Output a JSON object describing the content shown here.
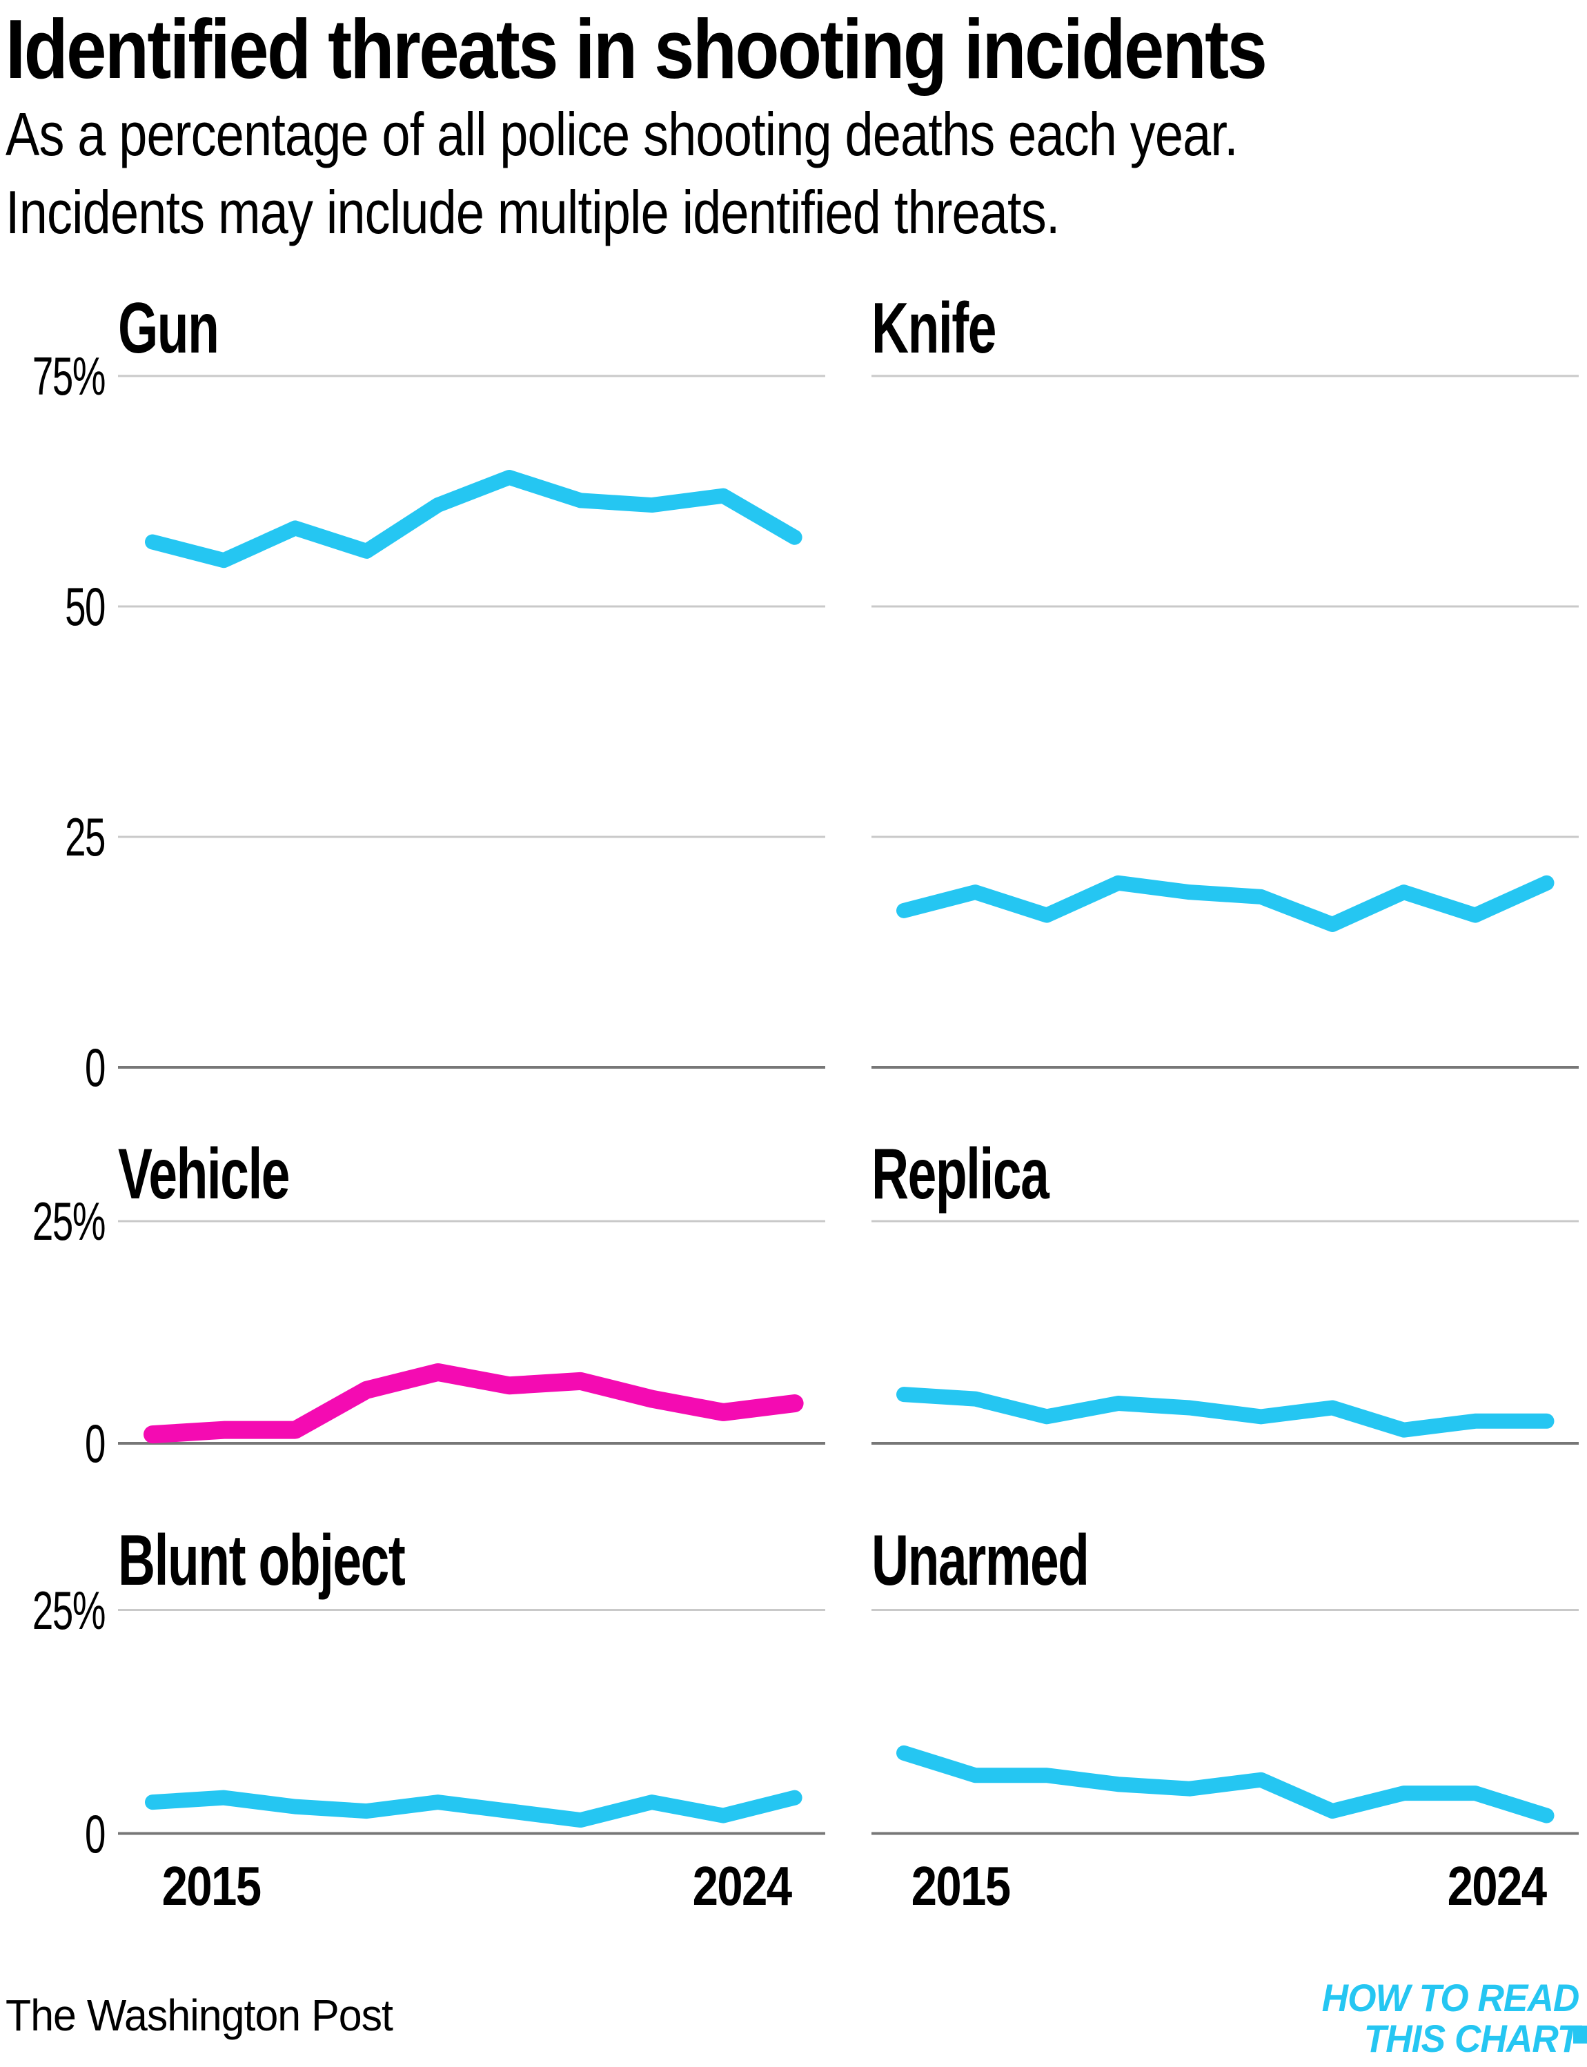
{
  "header": {
    "title": "Identified threats in shooting incidents",
    "subtitle_line1": "As a percentage of all police shooting deaths each year.",
    "subtitle_line2": "Incidents may include multiple identified threats."
  },
  "colors": {
    "cyan": "#25C6F2",
    "magenta": "#F40BB2",
    "grid": "#C9C9C9",
    "axis": "#777777",
    "text": "#000000"
  },
  "chart_data": {
    "type": "line",
    "title": "Identified threats in shooting incidents",
    "xlabel": "",
    "ylabel": "Percentage of all police shooting deaths",
    "x": [
      2015,
      2016,
      2017,
      2018,
      2019,
      2020,
      2021,
      2022,
      2023,
      2024
    ],
    "x_tick_labels": [
      "2015",
      "2024"
    ],
    "grid": true,
    "legend_position": "none",
    "rows": [
      {
        "ylim": [
          0,
          82
        ],
        "yticks": [
          {
            "label": "75%",
            "value": 75
          },
          {
            "label": "50",
            "value": 50
          },
          {
            "label": "25",
            "value": 25
          },
          {
            "label": "0",
            "value": 0
          }
        ]
      },
      {
        "ylim": [
          0,
          28
        ],
        "yticks": [
          {
            "label": "25%",
            "value": 25
          },
          {
            "label": "0",
            "value": 0
          }
        ]
      },
      {
        "ylim": [
          0,
          28
        ],
        "yticks": [
          {
            "label": "25%",
            "value": 25
          },
          {
            "label": "0",
            "value": 0
          }
        ]
      }
    ],
    "series": [
      {
        "name": "Gun",
        "color": "cyan",
        "values": [
          57,
          55,
          58.5,
          56,
          61,
          64,
          61.5,
          61,
          62,
          57.5
        ]
      },
      {
        "name": "Knife",
        "color": "cyan",
        "values": [
          17,
          19,
          16.5,
          20,
          19,
          18.5,
          15.5,
          19,
          16.5,
          20
        ]
      },
      {
        "name": "Vehicle",
        "color": "magenta",
        "values": [
          1,
          1.5,
          1.5,
          6,
          8,
          6.5,
          7,
          5,
          3.5,
          4.5
        ]
      },
      {
        "name": "Replica",
        "color": "cyan",
        "values": [
          5.5,
          5,
          3,
          4.5,
          4,
          3,
          4,
          1.5,
          2.5,
          2.5
        ]
      },
      {
        "name": "Blunt object",
        "color": "cyan",
        "values": [
          3.5,
          4,
          3,
          2.5,
          3.5,
          2.5,
          1.5,
          3.5,
          2,
          4
        ]
      },
      {
        "name": "Unarmed",
        "color": "cyan",
        "values": [
          9,
          6.5,
          6.5,
          5.5,
          5,
          6,
          2.5,
          4.5,
          4.5,
          2
        ]
      }
    ]
  },
  "footer": {
    "source": "The Washington Post",
    "logo_line1": "HOW TO READ",
    "logo_line2": "THIS CHART"
  }
}
